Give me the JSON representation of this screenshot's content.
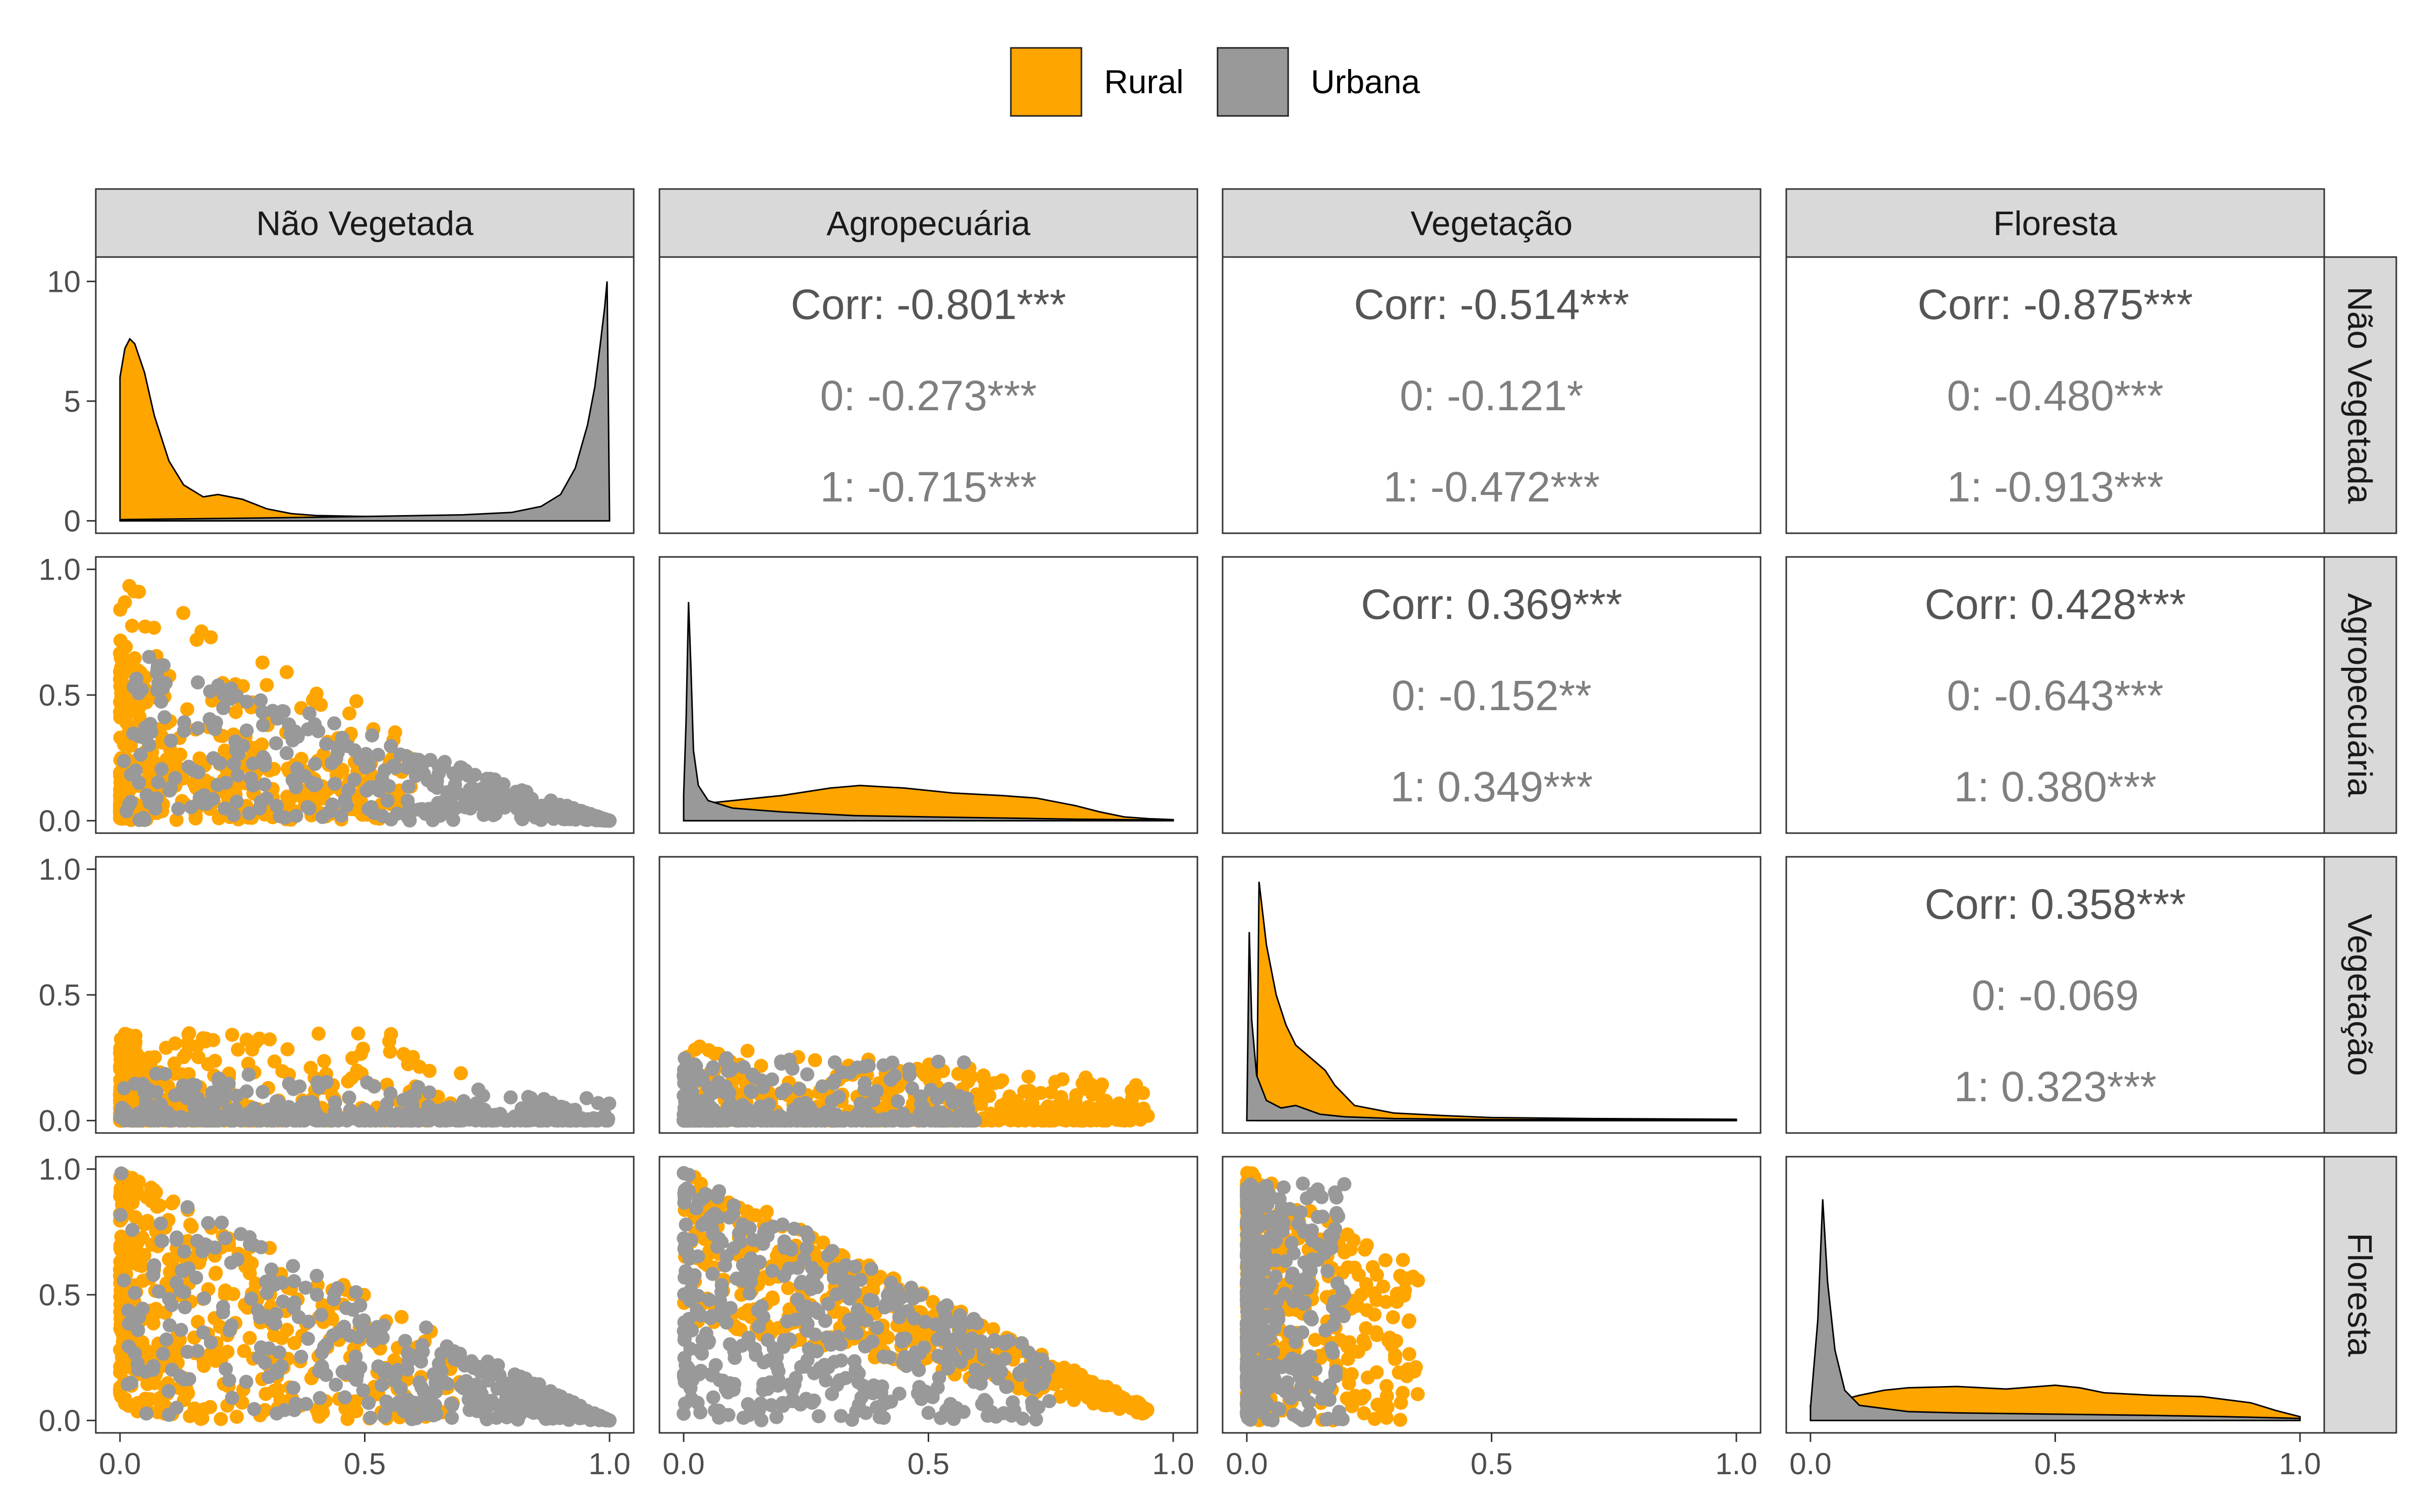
{
  "chart_data": {
    "type": "pairs",
    "variables": [
      "Não Vegetada",
      "Agropecuária",
      "Vegetação",
      "Floresta"
    ],
    "legend": {
      "position": "top",
      "entries": [
        {
          "label": "Rural",
          "color": "#FFA500"
        },
        {
          "label": "Urbana",
          "color": "#999999"
        }
      ]
    },
    "x_axis": {
      "range": [
        0,
        1
      ],
      "ticks": [
        "0.0",
        "0.5",
        "1.0"
      ]
    },
    "y_axis": {
      "top_left_density_ticks": [
        "0",
        "5",
        "10"
      ],
      "top_left_density_range": [
        0,
        10
      ],
      "scatter_ticks": [
        "0.0",
        "0.5",
        "1.0"
      ]
    },
    "correlations": [
      {
        "row": 0,
        "col": 1,
        "corr": "Corr: -0.801***",
        "g0": "0: -0.273***",
        "g1": "1: -0.715***"
      },
      {
        "row": 0,
        "col": 2,
        "corr": "Corr: -0.514***",
        "g0": "0: -0.121*",
        "g1": "1: -0.472***"
      },
      {
        "row": 0,
        "col": 3,
        "corr": "Corr: -0.875***",
        "g0": "0: -0.480***",
        "g1": "1: -0.913***"
      },
      {
        "row": 1,
        "col": 2,
        "corr": "Corr: 0.369***",
        "g0": "0: -0.152**",
        "g1": "1: 0.349***"
      },
      {
        "row": 1,
        "col": 3,
        "corr": "Corr: 0.428***",
        "g0": "0: -0.643***",
        "g1": "1: 0.380***"
      },
      {
        "row": 2,
        "col": 3,
        "corr": "Corr: 0.358***",
        "g0": "0: -0.069",
        "g1": "1: 0.323***"
      }
    ],
    "densities": [
      {
        "var": "Não Vegetada",
        "ymax": 10.5,
        "rural": [
          [
            0,
            6
          ],
          [
            0.01,
            7.2
          ],
          [
            0.02,
            7.6
          ],
          [
            0.03,
            7.4
          ],
          [
            0.05,
            6.2
          ],
          [
            0.07,
            4.4
          ],
          [
            0.1,
            2.5
          ],
          [
            0.13,
            1.5
          ],
          [
            0.17,
            1.0
          ],
          [
            0.2,
            1.1
          ],
          [
            0.25,
            0.9
          ],
          [
            0.3,
            0.5
          ],
          [
            0.35,
            0.3
          ],
          [
            0.4,
            0.22
          ],
          [
            0.5,
            0.18
          ],
          [
            0.6,
            0.15
          ],
          [
            0.7,
            0.12
          ],
          [
            0.8,
            0.15
          ],
          [
            0.9,
            0.15
          ],
          [
            0.95,
            0.12
          ],
          [
            1.0,
            0.1
          ]
        ],
        "urbana": [
          [
            0,
            0.05
          ],
          [
            0.3,
            0.12
          ],
          [
            0.5,
            0.18
          ],
          [
            0.7,
            0.25
          ],
          [
            0.8,
            0.35
          ],
          [
            0.86,
            0.6
          ],
          [
            0.9,
            1.1
          ],
          [
            0.93,
            2.2
          ],
          [
            0.955,
            4.0
          ],
          [
            0.97,
            5.6
          ],
          [
            0.98,
            7.2
          ],
          [
            0.99,
            8.9
          ],
          [
            0.995,
            10.0
          ],
          [
            1.0,
            0.1
          ]
        ]
      },
      {
        "var": "Agropecuária",
        "ymax": 100,
        "rural": [
          [
            0,
            5
          ],
          [
            0.02,
            6
          ],
          [
            0.05,
            7
          ],
          [
            0.1,
            8
          ],
          [
            0.2,
            10
          ],
          [
            0.3,
            13
          ],
          [
            0.36,
            14
          ],
          [
            0.45,
            13
          ],
          [
            0.55,
            11
          ],
          [
            0.65,
            10
          ],
          [
            0.72,
            9
          ],
          [
            0.8,
            6
          ],
          [
            0.85,
            3.5
          ],
          [
            0.9,
            1.5
          ],
          [
            0.95,
            0.8
          ],
          [
            1.0,
            0.4
          ]
        ],
        "urbana": [
          [
            0,
            10
          ],
          [
            0.005,
            40
          ],
          [
            0.01,
            87
          ],
          [
            0.015,
            60
          ],
          [
            0.02,
            28
          ],
          [
            0.03,
            14
          ],
          [
            0.05,
            8
          ],
          [
            0.1,
            5
          ],
          [
            0.2,
            3.5
          ],
          [
            0.35,
            2
          ],
          [
            0.5,
            1.5
          ],
          [
            0.6,
            1.2
          ],
          [
            0.8,
            0.6
          ],
          [
            1.0,
            0.2
          ]
        ]
      },
      {
        "var": "Vegetação",
        "ymax": 100,
        "rural": [
          [
            0.02,
            0
          ],
          [
            0.025,
            95
          ],
          [
            0.04,
            70
          ],
          [
            0.06,
            50
          ],
          [
            0.08,
            38
          ],
          [
            0.1,
            30
          ],
          [
            0.13,
            25
          ],
          [
            0.16,
            20
          ],
          [
            0.18,
            14
          ],
          [
            0.22,
            6
          ],
          [
            0.3,
            3
          ],
          [
            0.4,
            2
          ],
          [
            0.5,
            1.2
          ],
          [
            0.7,
            0.8
          ],
          [
            1.0,
            0.5
          ]
        ],
        "urbana": [
          [
            0.0,
            0
          ],
          [
            0.005,
            75
          ],
          [
            0.01,
            40
          ],
          [
            0.02,
            18
          ],
          [
            0.04,
            8
          ],
          [
            0.07,
            5
          ],
          [
            0.1,
            6
          ],
          [
            0.15,
            2.5
          ],
          [
            0.2,
            1.5
          ],
          [
            0.3,
            0.8
          ],
          [
            0.5,
            0.4
          ],
          [
            1.0,
            0.2
          ]
        ]
      },
      {
        "var": "Floresta",
        "ymax": 100,
        "rural": [
          [
            0,
            6
          ],
          [
            0.03,
            7
          ],
          [
            0.05,
            7.5
          ],
          [
            0.1,
            10
          ],
          [
            0.15,
            12
          ],
          [
            0.2,
            13
          ],
          [
            0.3,
            13.5
          ],
          [
            0.4,
            12.5
          ],
          [
            0.5,
            14
          ],
          [
            0.55,
            13
          ],
          [
            0.6,
            11
          ],
          [
            0.7,
            10
          ],
          [
            0.8,
            9.5
          ],
          [
            0.9,
            7
          ],
          [
            0.95,
            4
          ],
          [
            1.0,
            1.5
          ]
        ],
        "urbana": [
          [
            0,
            5
          ],
          [
            0.015,
            40
          ],
          [
            0.025,
            88
          ],
          [
            0.035,
            55
          ],
          [
            0.05,
            28
          ],
          [
            0.07,
            12
          ],
          [
            0.1,
            6
          ],
          [
            0.2,
            3.5
          ],
          [
            0.3,
            3
          ],
          [
            0.5,
            2.5
          ],
          [
            0.7,
            2
          ],
          [
            0.85,
            1.5
          ],
          [
            1.0,
            0.8
          ]
        ]
      }
    ]
  }
}
